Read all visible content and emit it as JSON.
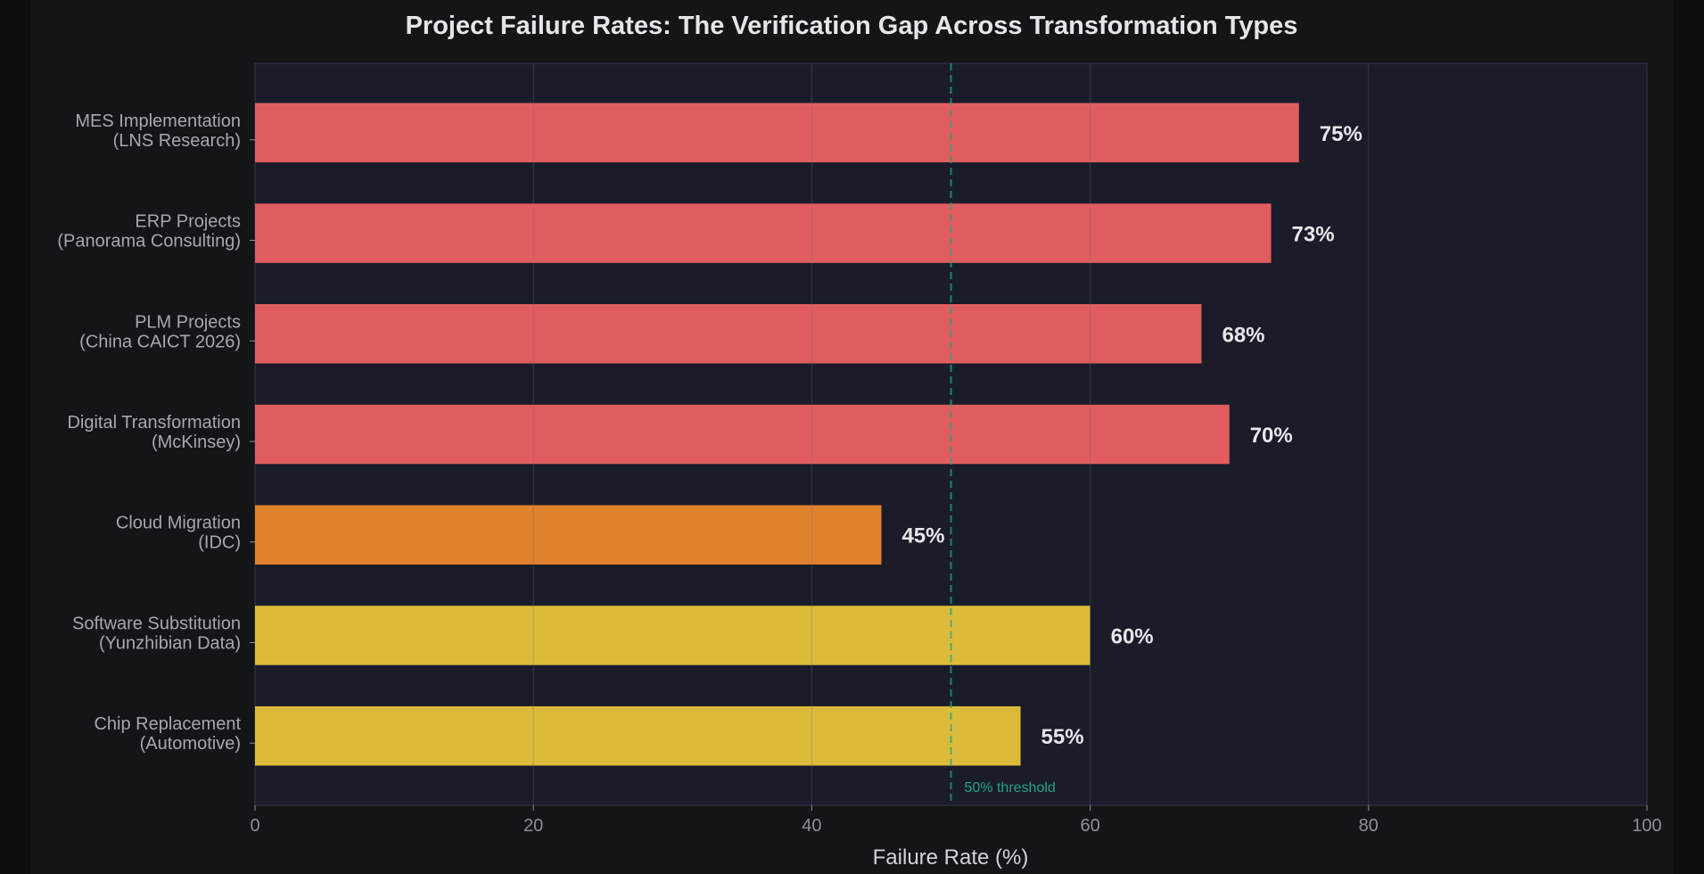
{
  "chart_data": {
    "type": "bar",
    "orientation": "horizontal",
    "title": "Project Failure Rates: The Verification Gap Across Transformation Types",
    "xlabel": "Failure Rate (%)",
    "ylabel": "",
    "xlim": [
      0,
      100
    ],
    "xticks": [
      0,
      20,
      40,
      60,
      80,
      100
    ],
    "grid": true,
    "categories": [
      [
        "MES Implementation",
        "(LNS Research)"
      ],
      [
        "ERP Projects",
        "(Panorama Consulting)"
      ],
      [
        "PLM Projects",
        "(China CAICT 2026)"
      ],
      [
        "Digital Transformation",
        "(McKinsey)"
      ],
      [
        "Cloud Migration",
        "(IDC)"
      ],
      [
        "Software Substitution",
        "(Yunzhibian Data)"
      ],
      [
        "Chip Replacement",
        "(Automotive)"
      ]
    ],
    "values": [
      75,
      73,
      68,
      70,
      45,
      60,
      55
    ],
    "value_labels": [
      "75%",
      "73%",
      "68%",
      "70%",
      "45%",
      "60%",
      "55%"
    ],
    "bar_colors": [
      "#e05d5f",
      "#e05d5f",
      "#e05d5f",
      "#e05d5f",
      "#e0812c",
      "#dcbb3b",
      "#dcbb3b"
    ],
    "reference_line": {
      "x": 50,
      "label": "50% threshold",
      "color": "#1fa58a",
      "style": "dashed"
    }
  }
}
